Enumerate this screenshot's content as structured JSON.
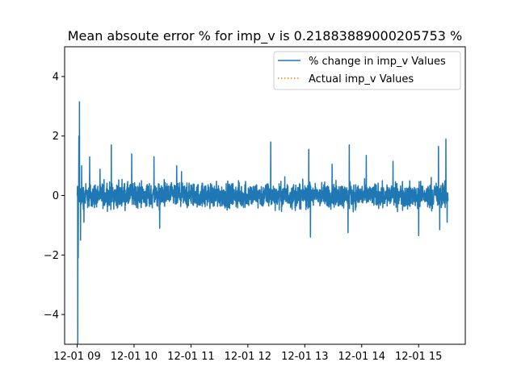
{
  "chart_data": {
    "type": "line",
    "title": "Mean absoute error % for imp_v is 0.21883889000205753 %",
    "xlabel": "",
    "ylabel": "",
    "x_ticks": [
      "12-01 09",
      "12-01 10",
      "12-01 11",
      "12-01 12",
      "12-01 13",
      "12-01 14",
      "12-01 15"
    ],
    "x_tick_hours": [
      9,
      10,
      11,
      12,
      13,
      14,
      15
    ],
    "xlim_hours": [
      8.78,
      15.82
    ],
    "ylim": [
      -5,
      5
    ],
    "y_ticks": [
      4,
      2,
      0,
      -2,
      -4
    ],
    "y_tick_labels": [
      "4",
      "2",
      "0",
      "−2",
      "−4"
    ],
    "grid": false,
    "legend_position": "top-right",
    "series": [
      {
        "name": "% change in imp_v Values",
        "style": "solid",
        "color": "#1f77b4",
        "x_start_hour": 9.0,
        "x_end_hour": 15.52,
        "typical_range": [
          -0.6,
          0.6
        ],
        "spikes": [
          {
            "hour": 9.01,
            "value": -5.0
          },
          {
            "hour": 9.03,
            "value": 2.0
          },
          {
            "hour": 9.02,
            "value": -2.1
          },
          {
            "hour": 9.04,
            "value": 3.15
          },
          {
            "hour": 9.06,
            "value": -1.5
          },
          {
            "hour": 9.08,
            "value": 1.0
          },
          {
            "hour": 9.12,
            "value": -0.9
          },
          {
            "hour": 9.22,
            "value": 1.3
          },
          {
            "hour": 9.6,
            "value": 1.7
          },
          {
            "hour": 9.96,
            "value": 1.4
          },
          {
            "hour": 10.35,
            "value": 1.3
          },
          {
            "hour": 10.75,
            "value": 1.0
          },
          {
            "hour": 10.45,
            "value": -1.1
          },
          {
            "hour": 12.4,
            "value": 1.8
          },
          {
            "hour": 13.07,
            "value": 1.55
          },
          {
            "hour": 13.1,
            "value": -1.4
          },
          {
            "hour": 13.48,
            "value": 1.05
          },
          {
            "hour": 13.78,
            "value": 1.7
          },
          {
            "hour": 13.76,
            "value": -1.25
          },
          {
            "hour": 14.08,
            "value": 1.35
          },
          {
            "hour": 14.55,
            "value": 1.15
          },
          {
            "hour": 15.0,
            "value": -1.35
          },
          {
            "hour": 15.35,
            "value": 1.65
          },
          {
            "hour": 15.37,
            "value": -1.15
          },
          {
            "hour": 15.48,
            "value": 1.9
          },
          {
            "hour": 15.5,
            "value": -0.9
          }
        ]
      },
      {
        "name": "Actual imp_v Values",
        "style": "dotted",
        "color": "#ff7f0e"
      }
    ]
  }
}
